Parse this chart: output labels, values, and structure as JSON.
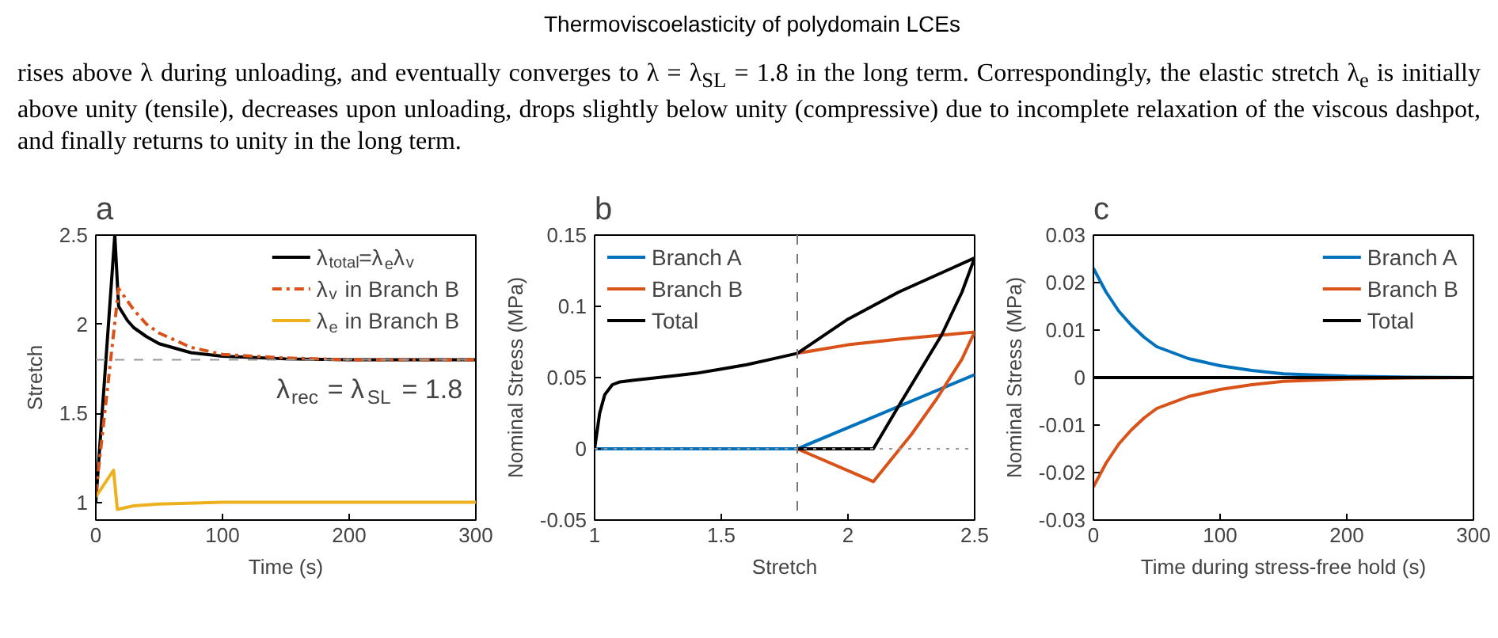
{
  "chart_data": [
    {
      "type": "other",
      "title": "Thermoviscoelasticity of polydomain LCEs",
      "annotations": [
        "rises above λ during unloading, and eventually converges to λ = λ$_{SL}$ = 1.8 in the long term. Correspondingly, the elastic stretch λ$_{e}$ is initially above unity (tensile), decreases upon unloading, drops slightly below unity (compressive) due to incomplete relaxation of the viscous dashpot, and finally returns to unity in the long term."
      ]
    },
    {
      "type": "line",
      "title": "a",
      "xlabel": "Time (s)",
      "ylabel": "Stretch",
      "xlim": [
        0,
        300
      ],
      "ylim": [
        0.9,
        2.5
      ],
      "xticks": [
        0,
        100,
        200,
        300
      ],
      "yticks": [
        1,
        1.5,
        2,
        2.5
      ],
      "grid": false,
      "legend": "top right",
      "ref_lines": [
        {
          "axis": "y",
          "value": 1.8,
          "label": "λ$_{rec}$ = λ$_{SL}$ = 1.8",
          "color": "#999999",
          "line_style": "dashed"
        }
      ],
      "series": [
        {
          "name": "λ$_{total}$=λ$_{e}$λ$_{v}$",
          "color": "#000000",
          "x": [
            0,
            15,
            18,
            25,
            30,
            40,
            50,
            75,
            100,
            150,
            200,
            300
          ],
          "values": [
            1.0,
            2.5,
            2.1,
            2.02,
            1.98,
            1.93,
            1.89,
            1.84,
            1.82,
            1.805,
            1.8,
            1.8
          ]
        },
        {
          "name": "λ$_{v}$ in Branch B",
          "color": "#d95319",
          "line_style": "dashed",
          "x": [
            0,
            18,
            25,
            30,
            40,
            50,
            75,
            100,
            150,
            200,
            300
          ],
          "values": [
            1.05,
            2.2,
            2.13,
            2.08,
            2.0,
            1.95,
            1.87,
            1.83,
            1.81,
            1.8,
            1.8
          ]
        },
        {
          "name": "λ$_{e}$ in Branch B",
          "color": "#edb120",
          "x": [
            0,
            14,
            17,
            30,
            50,
            100,
            200,
            300
          ],
          "values": [
            1.03,
            1.18,
            0.96,
            0.98,
            0.99,
            1.0,
            1.0,
            1.0
          ]
        }
      ]
    },
    {
      "type": "line",
      "title": "b",
      "xlabel": "Stretch",
      "ylabel": "Nominal Stress (MPa)",
      "xlim": [
        1,
        2.5
      ],
      "ylim": [
        -0.05,
        0.15
      ],
      "xticks": [
        1,
        1.5,
        2,
        2.5
      ],
      "yticks": [
        -0.05,
        0,
        0.05,
        0.1,
        0.15
      ],
      "grid": false,
      "legend": "top left",
      "ref_lines": [
        {
          "axis": "x",
          "value": 1.8,
          "color": "#777777",
          "line_style": "dashed"
        },
        {
          "axis": "y",
          "value": 0,
          "color": "#999999",
          "line_style": "dotted"
        }
      ],
      "series": [
        {
          "name": "Branch A",
          "color": "#0072bd",
          "x": [
            1,
            1.8,
            2.5
          ],
          "values": [
            0,
            0,
            0.052
          ]
        },
        {
          "name": "Branch B",
          "color": "#d95319",
          "x": [
            1.8,
            2.0,
            2.2,
            2.5,
            2.45,
            2.35,
            2.25,
            2.1,
            1.8
          ],
          "values": [
            0.067,
            0.073,
            0.077,
            0.082,
            0.063,
            0.035,
            0.01,
            -0.023,
            0
          ]
        },
        {
          "name": "Total",
          "color": "#000000",
          "x": [
            1,
            1.02,
            1.04,
            1.07,
            1.1,
            1.15,
            1.2,
            1.3,
            1.4,
            1.5,
            1.6,
            1.7,
            1.8,
            2.0,
            2.2,
            2.4,
            2.5,
            2.45,
            2.37,
            2.2,
            2.1,
            1.8
          ],
          "values": [
            0,
            0.025,
            0.038,
            0.045,
            0.047,
            0.048,
            0.049,
            0.051,
            0.053,
            0.056,
            0.059,
            0.063,
            0.067,
            0.091,
            0.11,
            0.126,
            0.134,
            0.11,
            0.08,
            0.03,
            0,
            0
          ]
        }
      ]
    },
    {
      "type": "line",
      "title": "c",
      "xlabel": "Time during stress-free hold (s)",
      "ylabel": "Nominal Stress (MPa)",
      "xlim": [
        0,
        300
      ],
      "ylim": [
        -0.03,
        0.03
      ],
      "xticks": [
        0,
        100,
        200,
        300
      ],
      "yticks": [
        -0.03,
        -0.02,
        -0.01,
        0,
        0.01,
        0.02,
        0.03
      ],
      "grid": false,
      "legend": "top right",
      "x": [
        0,
        10,
        20,
        30,
        40,
        50,
        75,
        100,
        125,
        150,
        200,
        250,
        300
      ],
      "series": [
        {
          "name": "Branch A",
          "color": "#0072bd",
          "values": [
            0.023,
            0.018,
            0.014,
            0.011,
            0.0085,
            0.0065,
            0.004,
            0.0025,
            0.0015,
            0.0008,
            0.0003,
            0.0001,
            0
          ]
        },
        {
          "name": "Branch B",
          "color": "#d95319",
          "values": [
            -0.023,
            -0.018,
            -0.014,
            -0.011,
            -0.0085,
            -0.0065,
            -0.004,
            -0.0025,
            -0.0015,
            -0.0008,
            -0.0003,
            -0.0001,
            0
          ]
        },
        {
          "name": "Total",
          "color": "#000000",
          "values": [
            0,
            0,
            0,
            0,
            0,
            0,
            0,
            0,
            0,
            0,
            0,
            0,
            0
          ]
        }
      ]
    }
  ]
}
